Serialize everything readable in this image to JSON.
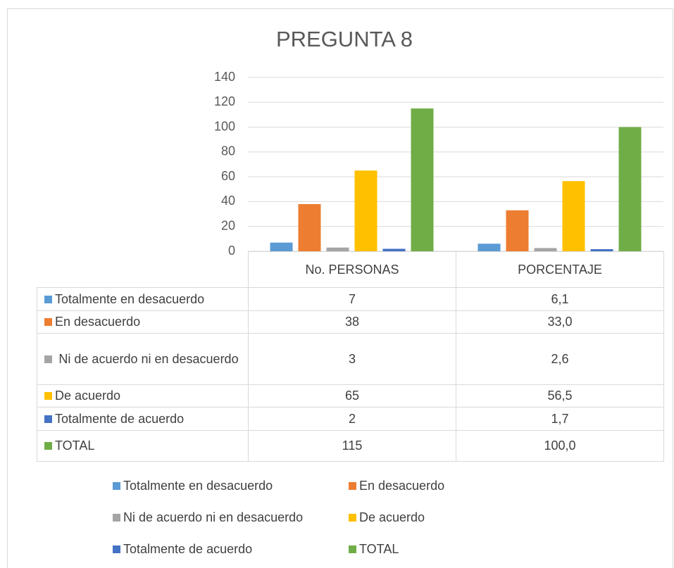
{
  "chart_data": {
    "type": "bar",
    "title": "PREGUNTA 8",
    "categories": [
      "No. PERSONAS",
      "PORCENTAJE"
    ],
    "series": [
      {
        "name": "Totalmente en desacuerdo",
        "color": "#5b9bd5",
        "values": [
          7,
          6.1
        ],
        "value_labels": [
          "7",
          "6,1"
        ]
      },
      {
        "name": "En desacuerdo",
        "color": "#ed7d31",
        "values": [
          38,
          33.0
        ],
        "value_labels": [
          "38",
          "33,0"
        ]
      },
      {
        "name": "Ni de acuerdo ni en desacuerdo",
        "color": "#a5a5a5",
        "values": [
          3,
          2.6
        ],
        "value_labels": [
          "3",
          "2,6"
        ]
      },
      {
        "name": "De acuerdo",
        "color": "#ffc000",
        "values": [
          65,
          56.5
        ],
        "value_labels": [
          "65",
          "56,5"
        ]
      },
      {
        "name": "Totalmente de acuerdo",
        "color": "#4472c4",
        "values": [
          2,
          1.7
        ],
        "value_labels": [
          "2",
          "1,7"
        ]
      },
      {
        "name": "TOTAL",
        "color": "#70ad47",
        "values": [
          115,
          100.0
        ],
        "value_labels": [
          "115",
          "100,0"
        ]
      }
    ],
    "ylim": [
      0,
      140
    ],
    "yticks": [
      0,
      20,
      40,
      60,
      80,
      100,
      120,
      140
    ],
    "grid": true,
    "legend": "bottom"
  }
}
